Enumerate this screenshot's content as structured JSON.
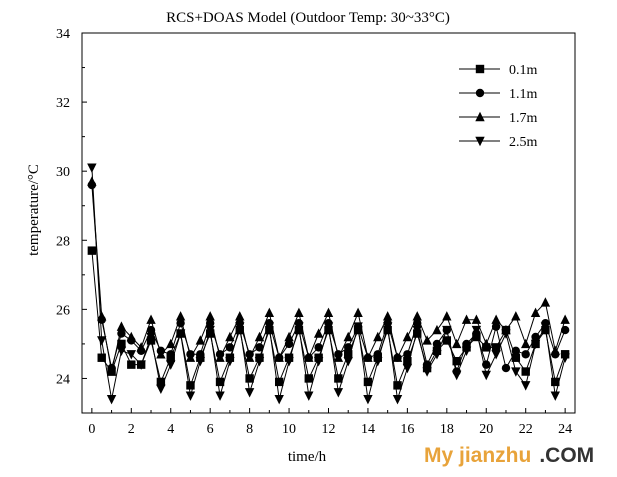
{
  "chart_data": {
    "type": "line",
    "title": "RCS+DOAS Model (Outdoor Temp: 30~33°C)",
    "xlabel": "time/h",
    "ylabel": "temperature/°C",
    "xlim": [
      -0.5,
      24.5
    ],
    "ylim": [
      23,
      34
    ],
    "xticks": [
      0,
      2,
      4,
      6,
      8,
      10,
      12,
      14,
      16,
      18,
      20,
      22,
      24
    ],
    "yticks": [
      24,
      26,
      28,
      30,
      32,
      34
    ],
    "legend_position": "top-right",
    "grid": false,
    "x": [
      0,
      0.5,
      1,
      1.5,
      2,
      2.5,
      3,
      3.5,
      4,
      4.5,
      5,
      5.5,
      6,
      6.5,
      7,
      7.5,
      8,
      8.5,
      9,
      9.5,
      10,
      10.5,
      11,
      11.5,
      12,
      12.5,
      13,
      13.5,
      14,
      14.5,
      15,
      15.5,
      16,
      16.5,
      17,
      17.5,
      18,
      18.5,
      19,
      19.5,
      20,
      20.5,
      21,
      21.5,
      22,
      22.5,
      23,
      23.5,
      24
    ],
    "series": [
      {
        "name": "0.1m",
        "marker": "square",
        "values": [
          27.7,
          24.6,
          24.2,
          25.0,
          24.4,
          24.4,
          25.1,
          23.9,
          24.6,
          25.3,
          23.8,
          24.6,
          25.3,
          23.9,
          24.6,
          25.4,
          24.0,
          24.6,
          25.4,
          23.9,
          24.6,
          25.4,
          24.0,
          24.6,
          25.4,
          24.0,
          24.7,
          25.4,
          23.9,
          24.6,
          25.4,
          23.8,
          24.5,
          25.3,
          24.3,
          24.8,
          25.1,
          24.5,
          24.9,
          25.2,
          24.9,
          24.9,
          25.4,
          24.6,
          24.2,
          25.0,
          25.4,
          23.9,
          24.7
        ]
      },
      {
        "name": "1.1m",
        "marker": "circle",
        "values": [
          29.6,
          25.7,
          24.3,
          25.3,
          25.1,
          24.8,
          25.4,
          24.8,
          24.7,
          25.6,
          24.7,
          24.7,
          25.6,
          24.7,
          24.9,
          25.6,
          24.7,
          24.9,
          25.6,
          24.6,
          25.0,
          25.6,
          24.6,
          24.9,
          25.6,
          24.7,
          24.9,
          25.5,
          24.6,
          24.7,
          25.6,
          24.6,
          24.7,
          25.6,
          24.4,
          25.0,
          25.4,
          24.2,
          25.0,
          25.3,
          24.4,
          25.5,
          24.3,
          24.8,
          24.7,
          25.2,
          25.6,
          24.7,
          25.4
        ]
      },
      {
        "name": "1.7m",
        "marker": "triangle-up",
        "values": [
          29.7,
          25.8,
          24.2,
          25.5,
          25.2,
          24.9,
          25.7,
          24.7,
          25.0,
          25.8,
          24.6,
          25.1,
          25.8,
          24.6,
          25.2,
          25.8,
          24.6,
          25.2,
          25.9,
          24.6,
          25.2,
          25.9,
          24.6,
          25.3,
          25.9,
          24.6,
          25.2,
          25.9,
          24.6,
          25.2,
          25.8,
          24.6,
          25.2,
          25.8,
          25.1,
          25.4,
          25.8,
          25.0,
          25.7,
          25.7,
          25.0,
          25.7,
          25.4,
          25.8,
          25.0,
          25.9,
          26.2,
          24.8,
          25.7
        ]
      },
      {
        "name": "2.5m",
        "marker": "triangle-down",
        "values": [
          30.1,
          25.1,
          23.4,
          24.8,
          24.7,
          24.4,
          25.2,
          23.7,
          24.4,
          25.3,
          23.5,
          24.5,
          25.4,
          23.5,
          24.5,
          25.5,
          23.6,
          24.5,
          25.5,
          23.4,
          24.5,
          25.5,
          23.5,
          24.5,
          25.5,
          23.6,
          24.5,
          25.5,
          23.4,
          24.5,
          25.5,
          23.4,
          24.3,
          25.4,
          24.2,
          24.7,
          25.4,
          24.1,
          24.8,
          25.4,
          24.1,
          24.7,
          25.3,
          24.2,
          23.8,
          25.0,
          25.5,
          23.5,
          24.6
        ]
      }
    ]
  },
  "watermark": {
    "part1": "My jianzhu",
    "part2": ".COM",
    "color1": "#e8a33a",
    "color2": "#333333"
  }
}
